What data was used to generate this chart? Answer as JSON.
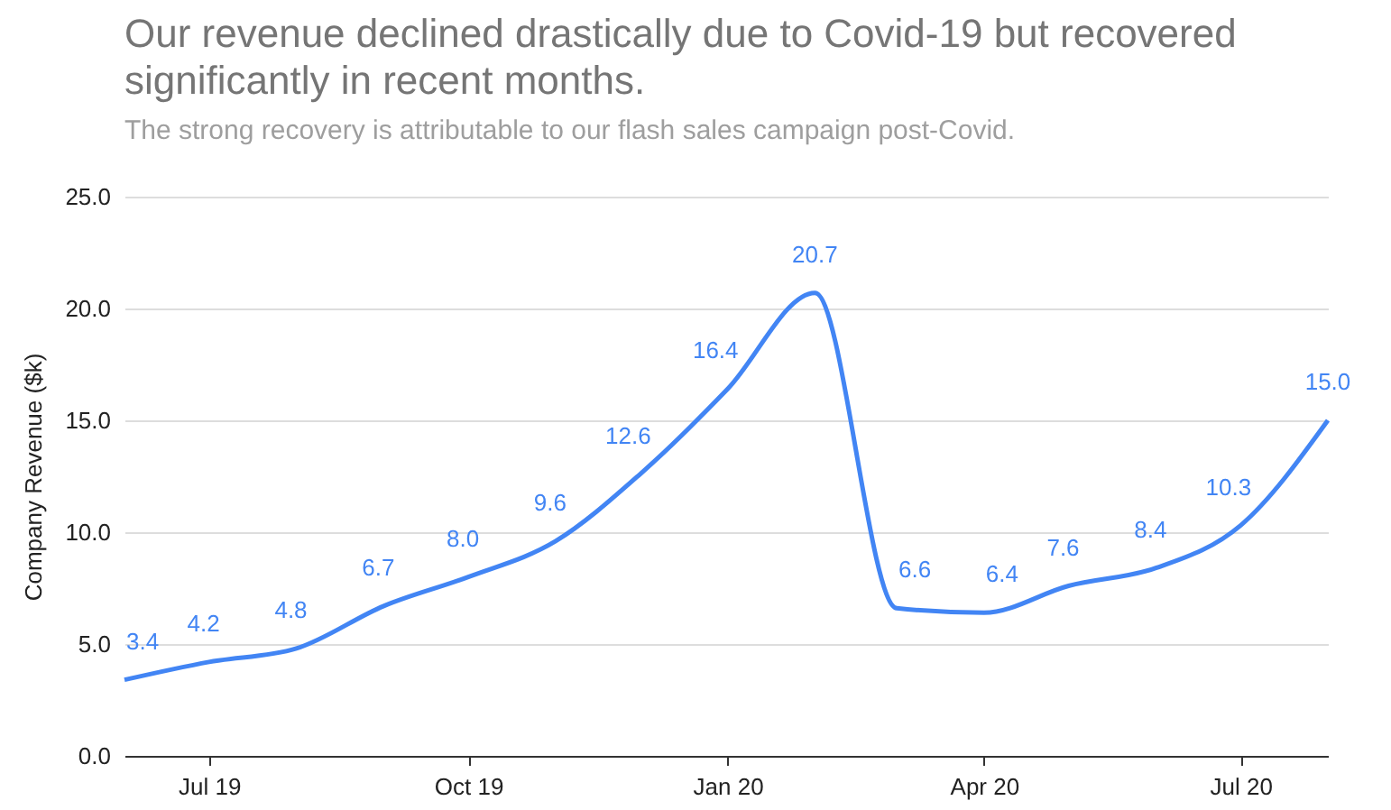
{
  "chart_data": {
    "type": "line",
    "title": "Our revenue declined drastically due to Covid-19 but recovered significantly in recent months.",
    "subtitle": "The strong recovery is attributable to our flash sales campaign post-Covid.",
    "ylabel": "Company Revenue ($k)",
    "x": [
      "2019-06",
      "2019-07",
      "2019-08",
      "2019-09",
      "2019-10",
      "2019-11",
      "2019-12",
      "2020-01",
      "2020-02",
      "2020-03",
      "2020-04",
      "2020-05",
      "2020-06",
      "2020-07",
      "2020-08"
    ],
    "series": [
      {
        "color": "#4285f4",
        "values": [
          3.4,
          4.2,
          4.8,
          6.7,
          8.0,
          9.6,
          12.6,
          16.4,
          20.7,
          6.6,
          6.4,
          7.6,
          8.4,
          10.3,
          15.0
        ],
        "value_labels": [
          "3.4",
          "4.2",
          "4.8",
          "6.7",
          "8.0",
          "9.6",
          "12.6",
          "16.4",
          "20.7",
          "6.6",
          "6.4",
          "7.6",
          "8.4",
          "10.3",
          "15.0"
        ]
      }
    ],
    "xlim": [
      "2019-06",
      "2020-08"
    ],
    "xticks": [
      {
        "value": "2019-07",
        "label": "Jul 19"
      },
      {
        "value": "2019-10",
        "label": "Oct 19"
      },
      {
        "value": "2020-01",
        "label": "Jan 20"
      },
      {
        "value": "2020-04",
        "label": "Apr 20"
      },
      {
        "value": "2020-07",
        "label": "Jul 20"
      }
    ],
    "ylim": [
      0,
      25
    ],
    "yticks": [
      {
        "value": 0,
        "label": "0.0"
      },
      {
        "value": 5,
        "label": "5.0"
      },
      {
        "value": 10,
        "label": "10.0"
      },
      {
        "value": 15,
        "label": "15.0"
      },
      {
        "value": 20,
        "label": "20.0"
      },
      {
        "value": 25,
        "label": "25.0"
      }
    ],
    "grid": "y",
    "marker": "none",
    "line_style": "solid",
    "legend": false
  }
}
